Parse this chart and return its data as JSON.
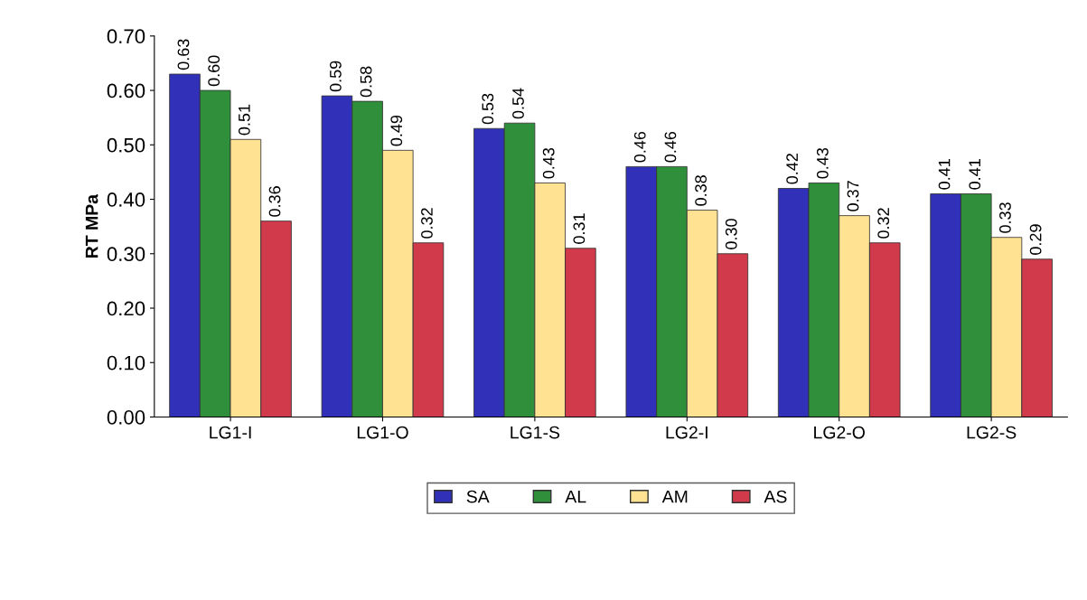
{
  "chart_data": {
    "type": "bar",
    "ylabel": "RT MPa",
    "categories": [
      "LG1-I",
      "LG1-O",
      "LG1-S",
      "LG2-I",
      "LG2-O",
      "LG2-S"
    ],
    "series": [
      {
        "name": "SA",
        "color": "#3030b8",
        "values": [
          0.63,
          0.59,
          0.53,
          0.46,
          0.42,
          0.41
        ],
        "value_labels": [
          "0.63",
          "0.59",
          "0.53",
          "0.46",
          "0.42",
          "0.41"
        ]
      },
      {
        "name": "AL",
        "color": "#2f8f3a",
        "values": [
          0.6,
          0.58,
          0.54,
          0.46,
          0.43,
          0.41
        ],
        "value_labels": [
          "0.60",
          "0.58",
          "0.54",
          "0.46",
          "0.43",
          "0.41"
        ]
      },
      {
        "name": "AM",
        "color": "#ffe392",
        "values": [
          0.51,
          0.49,
          0.43,
          0.38,
          0.37,
          0.33
        ],
        "value_labels": [
          "0.51",
          "0.49",
          "0.43",
          "0.38",
          "0.37",
          "0.33"
        ]
      },
      {
        "name": "AS",
        "color": "#d03a4a",
        "values": [
          0.36,
          0.32,
          0.31,
          0.3,
          0.32,
          0.29
        ],
        "value_labels": [
          "0.36",
          "0.32",
          "0.31",
          "0.30",
          "0.32",
          "0.29"
        ]
      }
    ],
    "ylim": [
      0,
      0.7
    ],
    "yticks": [
      {
        "value": 0,
        "label": "0.00"
      },
      {
        "value": 0.1,
        "label": "0.10"
      },
      {
        "value": 0.2,
        "label": "0.20"
      },
      {
        "value": 0.3,
        "label": "0.30"
      },
      {
        "value": 0.4,
        "label": "0.40"
      },
      {
        "value": 0.5,
        "label": "0.50"
      },
      {
        "value": 0.6,
        "label": "0.60"
      },
      {
        "value": 0.7,
        "label": "0.70"
      }
    ],
    "grid": false,
    "legend": "bottom"
  }
}
